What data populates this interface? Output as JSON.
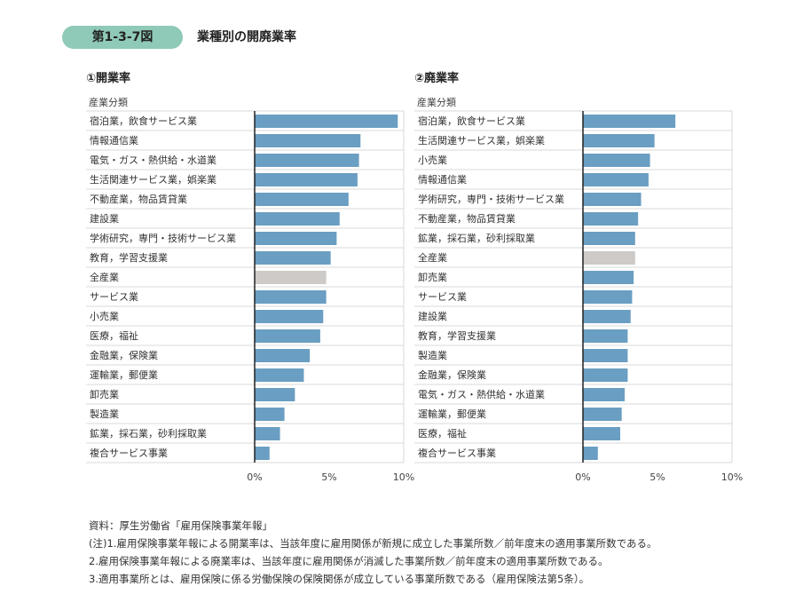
{
  "figure": {
    "number": "第1-3-7図",
    "title": "業種別の開廃業率"
  },
  "colors": {
    "bar": "#6a9ec2",
    "total_bar": "#cdcac7",
    "grid": "#d9d9d9",
    "axis": "#222222"
  },
  "chart_data": [
    {
      "type": "bar",
      "orientation": "horizontal",
      "title": "①開業率",
      "category_header": "産業分類",
      "xlim": [
        0,
        10
      ],
      "x_ticks": [
        "0%",
        "5%",
        "10%"
      ],
      "categories": [
        "宿泊業，飲食サービス業",
        "情報通信業",
        "電気・ガス・熱供給・水道業",
        "生活関連サービス業，娯楽業",
        "不動産業，物品賃貸業",
        "建設業",
        "学術研究，専門・技術サービス業",
        "教育，学習支援業",
        "全産業",
        "サービス業",
        "小売業",
        "医療，福祉",
        "金融業，保険業",
        "運輸業，郵便業",
        "卸売業",
        "製造業",
        "鉱業，採石業，砂利採取業",
        "複合サービス事業"
      ],
      "values": [
        9.6,
        7.1,
        7.0,
        6.9,
        6.3,
        5.7,
        5.5,
        5.1,
        4.8,
        4.8,
        4.6,
        4.4,
        3.7,
        3.3,
        2.7,
        2.0,
        1.7,
        1.0
      ],
      "highlight": "全産業",
      "grid": true
    },
    {
      "type": "bar",
      "orientation": "horizontal",
      "title": "②廃業率",
      "category_header": "産業分類",
      "xlim": [
        0,
        10
      ],
      "x_ticks": [
        "0%",
        "5%",
        "10%"
      ],
      "categories": [
        "宿泊業，飲食サービス業",
        "生活関連サービス業，娯楽業",
        "小売業",
        "情報通信業",
        "学術研究，専門・技術サービス業",
        "不動産業，物品賃貸業",
        "鉱業，採石業，砂利採取業",
        "全産業",
        "卸売業",
        "サービス業",
        "建設業",
        "教育，学習支援業",
        "製造業",
        "金融業，保険業",
        "電気・ガス・熱供給・水道業",
        "運輸業，郵便業",
        "医療，福祉",
        "複合サービス事業"
      ],
      "values": [
        6.2,
        4.8,
        4.5,
        4.4,
        3.9,
        3.7,
        3.5,
        3.5,
        3.4,
        3.3,
        3.2,
        3.0,
        3.0,
        3.0,
        2.8,
        2.6,
        2.5,
        1.0
      ],
      "highlight": "全産業",
      "grid": true
    }
  ],
  "notes": {
    "source": "資料：厚生労働省「雇用保険事業年報」",
    "note1": "(注)1.雇用保険事業年報による開業率は、当該年度に雇用関係が新規に成立した事業所数／前年度末の適用事業所数である。",
    "note2": "2.雇用保険事業年報による廃業率は、当該年度に雇用関係が消滅した事業所数／前年度末の適用事業所数である。",
    "note3": "3.適用事業所とは、雇用保険に係る労働保険の保険関係が成立している事業所数である（雇用保険法第5条）。"
  }
}
